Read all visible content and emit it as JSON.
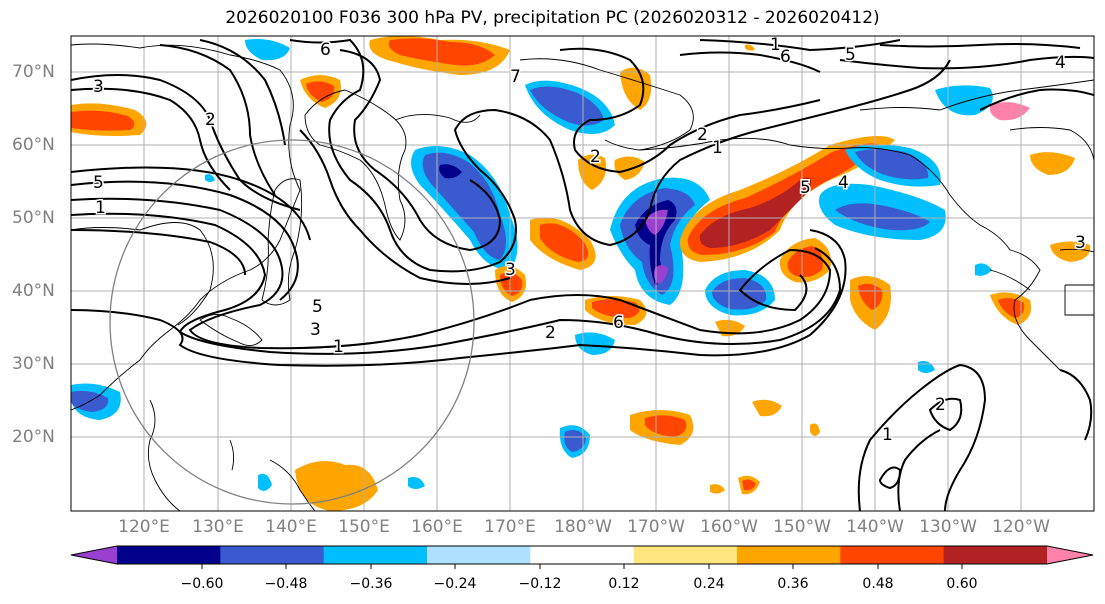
{
  "title": "2026020100 F036 300 hPa PV, precipitation PC (2026020312 - 2026020412)",
  "lat_labels": [
    "70°N",
    "60°N",
    "50°N",
    "40°N",
    "30°N",
    "20°N"
  ],
  "lon_labels": [
    "120°E",
    "130°E",
    "140°E",
    "150°E",
    "160°E",
    "170°E",
    "180°W",
    "170°W",
    "160°W",
    "150°W",
    "140°W",
    "130°W",
    "120°W"
  ],
  "colorbar": {
    "colors": [
      "#9a3fd0",
      "#00008b",
      "#3a5bd0",
      "#00bfff",
      "#b0e0ff",
      "#ffffff",
      "#ffe680",
      "#ffa500",
      "#ff4500",
      "#b22222",
      "#ff82ab"
    ],
    "tick_labels": [
      "−0.60",
      "−0.48",
      "−0.36",
      "−0.24",
      "−0.12",
      "0.12",
      "0.24",
      "0.36",
      "0.48",
      "0.60"
    ]
  },
  "contour_labels": [
    "1",
    "2",
    "3",
    "5",
    "6",
    "7",
    "1",
    "2",
    "3",
    "4",
    "5",
    "6",
    "1",
    "2",
    "3",
    "5",
    "1",
    "2",
    "1",
    "2",
    "6",
    "4",
    "5",
    "3"
  ],
  "colors": {
    "contour": "#000000",
    "grid": "#b0b0b0",
    "coast": "#000000",
    "circle": "#808080",
    "axis_label": "#808080"
  }
}
